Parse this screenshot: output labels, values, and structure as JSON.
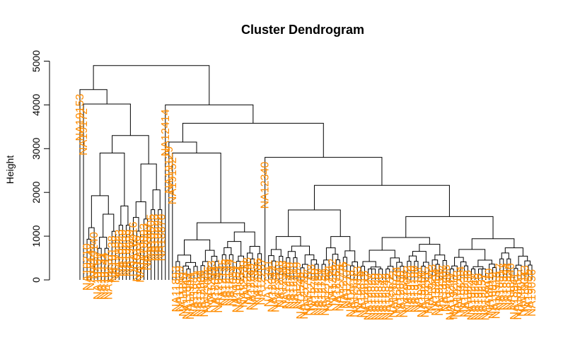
{
  "chart_data": {
    "type": "dendrogram",
    "title": "Cluster Dendrogram",
    "xlabel": "",
    "ylabel": "Height",
    "ylim": [
      0,
      5000
    ],
    "yticks": [
      0,
      1000,
      2000,
      3000,
      4000,
      5000
    ],
    "grid": false,
    "label_color": "#ff8c00",
    "line_color": "#000000",
    "leaves": [
      "NA19153",
      "NA19172",
      "NA19210",
      "NA19143",
      "NA19140",
      "NA19159",
      "NA19131",
      "NA19144",
      "NA19137",
      "NA19138",
      "NA19132",
      "NA18523",
      "NA19239",
      "NA19238",
      "NA19099",
      "NA18916",
      "NA19116",
      "NA18933",
      "NA19093",
      "NA18907",
      "NA18505",
      "NA19223",
      "NA19222",
      "NA18870",
      "NA12414",
      "NA19129",
      "NA19152",
      "NA11893",
      "NA11839",
      "NA11881",
      "NA11843",
      "NA11994",
      "NA11831",
      "NA11832",
      "NA12004",
      "NA12005",
      "NA12006",
      "NA12043",
      "NA12044",
      "NA12045",
      "NA12145",
      "NA12146",
      "NA12144",
      "NA10847",
      "NA10851",
      "NA10854",
      "NA12239",
      "NA12248",
      "NA12249",
      "NA12283",
      "NA12286",
      "NA12287",
      "NA12340",
      "NA12341",
      "NA12342",
      "NA12347",
      "NA12348",
      "NA12383",
      "NA12399",
      "NA12400",
      "NA12413",
      "NA12489",
      "NA12546",
      "NA12716",
      "NA12717",
      "NA12718",
      "NA12749",
      "NA12750",
      "NA12751",
      "NA12760",
      "NA12761",
      "NA12762",
      "NA12763",
      "NA12775",
      "NA12776",
      "NA12777",
      "NA12778",
      "NA12812",
      "NA12813",
      "NA12814",
      "NA12815",
      "NA12827",
      "NA12828",
      "NA12829",
      "NA12830",
      "NA12842",
      "NA12843",
      "NA12872",
      "NA12873",
      "NA12874",
      "NA12889",
      "NA12890",
      "NA19092",
      "NA19189",
      "NA19190",
      "NA19191",
      "NA19200",
      "NA19201",
      "NA19202",
      "NA19203",
      "NA19204",
      "NA19206",
      "NA19207",
      "NA19208",
      "NA19209",
      "NA19211",
      "NA19213",
      "NA19214",
      "NA19235",
      "NA19236",
      "NA19247",
      "NA19248",
      "NA19256",
      "NA19257",
      "NA18871",
      "NA18910",
      "NA18912",
      "NA18913",
      "NA18917",
      "NA18923",
      "NA18934",
      "NA18940",
      "NA18941",
      "NA18951",
      "NA19012",
      "NA19043",
      "NA19055",
      "NA19056"
    ]
  }
}
